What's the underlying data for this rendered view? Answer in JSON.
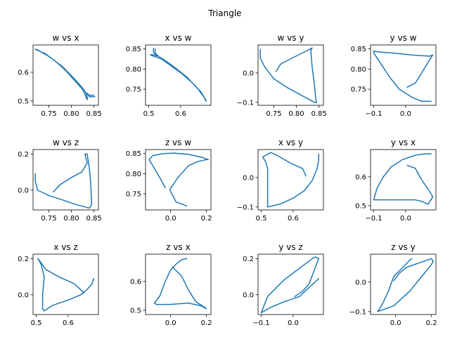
{
  "figure": {
    "title": "Triangle"
  },
  "colors": {
    "series": "#1f77b4"
  },
  "chart_data": [
    {
      "type": "line",
      "title": "w vs x",
      "xlim": [
        0.715,
        0.86
      ],
      "ylim": [
        0.485,
        0.695
      ],
      "xticks": [
        {
          "v": 0.75,
          "label": "0.75"
        },
        {
          "v": 0.8,
          "label": "0.80"
        },
        {
          "v": 0.85,
          "label": "0.85"
        }
      ],
      "yticks": [
        {
          "v": 0.5,
          "label": "0.5"
        },
        {
          "v": 0.6,
          "label": "0.6"
        }
      ],
      "x": [
        0.85,
        0.84,
        0.832,
        0.836,
        0.835,
        0.825,
        0.808,
        0.788,
        0.765,
        0.742,
        0.72,
        0.725,
        0.75,
        0.78,
        0.805,
        0.822,
        0.832,
        0.84,
        0.852
      ],
      "y": [
        0.52,
        0.52,
        0.53,
        0.508,
        0.505,
        0.54,
        0.57,
        0.605,
        0.638,
        0.665,
        0.68,
        0.678,
        0.655,
        0.62,
        0.58,
        0.55,
        0.53,
        0.515,
        0.515
      ]
    },
    {
      "type": "line",
      "title": "x vs w",
      "xlim": [
        0.49,
        0.695
      ],
      "ylim": [
        0.71,
        0.86
      ],
      "xticks": [
        {
          "v": 0.5,
          "label": "0.5"
        },
        {
          "v": 0.6,
          "label": "0.6"
        }
      ],
      "yticks": [
        {
          "v": 0.75,
          "label": "0.75"
        },
        {
          "v": 0.8,
          "label": "0.80"
        },
        {
          "v": 0.85,
          "label": "0.85"
        }
      ],
      "x": [
        0.52,
        0.52,
        0.53,
        0.508,
        0.505,
        0.54,
        0.57,
        0.605,
        0.638,
        0.665,
        0.68,
        0.678,
        0.655,
        0.62,
        0.58,
        0.55,
        0.53,
        0.515,
        0.515
      ],
      "y": [
        0.85,
        0.84,
        0.832,
        0.836,
        0.835,
        0.825,
        0.808,
        0.788,
        0.765,
        0.742,
        0.72,
        0.725,
        0.75,
        0.78,
        0.805,
        0.822,
        0.832,
        0.84,
        0.852
      ]
    },
    {
      "type": "line",
      "title": "w vs y",
      "xlim": [
        0.715,
        0.86
      ],
      "ylim": [
        -0.11,
        0.095
      ],
      "xticks": [
        {
          "v": 0.75,
          "label": "0.75"
        },
        {
          "v": 0.8,
          "label": "0.80"
        },
        {
          "v": 0.85,
          "label": "0.85"
        }
      ],
      "yticks": [
        {
          "v": -0.1,
          "label": "−0.1"
        },
        {
          "v": 0.0,
          "label": "0.0"
        }
      ],
      "x": [
        0.755,
        0.765,
        0.79,
        0.823,
        0.835,
        0.832,
        0.835,
        0.84,
        0.843,
        0.845,
        0.84,
        0.81,
        0.78,
        0.75,
        0.73,
        0.72,
        0.72
      ],
      "y": [
        0.005,
        0.03,
        0.05,
        0.075,
        0.085,
        0.075,
        0.02,
        -0.04,
        -0.09,
        -0.1,
        -0.1,
        -0.075,
        -0.05,
        -0.02,
        0.02,
        0.05,
        0.08
      ]
    },
    {
      "type": "line",
      "title": "y vs w",
      "xlim": [
        -0.11,
        0.095
      ],
      "ylim": [
        0.71,
        0.86
      ],
      "xticks": [
        {
          "v": -0.1,
          "label": "−0.1"
        },
        {
          "v": 0.0,
          "label": "0.0"
        }
      ],
      "yticks": [
        {
          "v": 0.75,
          "label": "0.75"
        },
        {
          "v": 0.8,
          "label": "0.80"
        },
        {
          "v": 0.85,
          "label": "0.85"
        }
      ],
      "x": [
        0.005,
        0.03,
        0.05,
        0.075,
        0.085,
        0.075,
        0.02,
        -0.04,
        -0.09,
        -0.1,
        -0.1,
        -0.075,
        -0.05,
        -0.02,
        0.02,
        0.05,
        0.08
      ],
      "y": [
        0.755,
        0.765,
        0.79,
        0.823,
        0.835,
        0.832,
        0.835,
        0.84,
        0.843,
        0.845,
        0.84,
        0.81,
        0.78,
        0.75,
        0.73,
        0.72,
        0.72
      ]
    },
    {
      "type": "line",
      "title": "w vs z",
      "xlim": [
        0.715,
        0.86
      ],
      "ylim": [
        -0.11,
        0.225
      ],
      "xticks": [
        {
          "v": 0.75,
          "label": "0.75"
        },
        {
          "v": 0.8,
          "label": "0.80"
        },
        {
          "v": 0.85,
          "label": "0.85"
        }
      ],
      "yticks": [
        {
          "v": 0.0,
          "label": "0.0"
        },
        {
          "v": 0.2,
          "label": "0.2"
        }
      ],
      "x": [
        0.76,
        0.775,
        0.8,
        0.823,
        0.835,
        0.83,
        0.835,
        0.84,
        0.843,
        0.845,
        0.84,
        0.81,
        0.775,
        0.75,
        0.725,
        0.72,
        0.72
      ],
      "y": [
        -0.01,
        0.03,
        0.07,
        0.1,
        0.15,
        0.2,
        0.2,
        0.12,
        0.03,
        -0.08,
        -0.1,
        -0.08,
        -0.05,
        -0.03,
        0.0,
        0.05,
        0.09
      ]
    },
    {
      "type": "line",
      "title": "z vs w",
      "xlim": [
        -0.14,
        0.225
      ],
      "ylim": [
        0.71,
        0.86
      ],
      "xticks": [
        {
          "v": 0.0,
          "label": "0.0"
        },
        {
          "v": 0.2,
          "label": "0.2"
        }
      ],
      "yticks": [
        {
          "v": 0.75,
          "label": "0.75"
        },
        {
          "v": 0.8,
          "label": "0.80"
        },
        {
          "v": 0.85,
          "label": "0.85"
        }
      ],
      "x": [
        0.09,
        0.03,
        -0.005,
        0.04,
        0.1,
        0.15,
        0.2,
        0.21,
        0.18,
        0.1,
        0.02,
        -0.04,
        -0.1,
        -0.12,
        -0.1,
        -0.06,
        -0.03
      ],
      "y": [
        0.72,
        0.73,
        0.76,
        0.79,
        0.82,
        0.83,
        0.835,
        0.835,
        0.84,
        0.848,
        0.851,
        0.85,
        0.845,
        0.835,
        0.82,
        0.79,
        0.765
      ]
    },
    {
      "type": "line",
      "title": "x vs y",
      "xlim": [
        0.49,
        0.695
      ],
      "ylim": [
        -0.11,
        0.095
      ],
      "xticks": [
        {
          "v": 0.5,
          "label": "0.5"
        },
        {
          "v": 0.6,
          "label": "0.6"
        }
      ],
      "yticks": [
        {
          "v": -0.1,
          "label": "−0.1"
        },
        {
          "v": 0.0,
          "label": "0.0"
        }
      ],
      "x": [
        0.64,
        0.63,
        0.59,
        0.55,
        0.53,
        0.505,
        0.515,
        0.52,
        0.52,
        0.52,
        0.56,
        0.6,
        0.635,
        0.66,
        0.675,
        0.68,
        0.68
      ],
      "y": [
        0.005,
        0.03,
        0.05,
        0.075,
        0.085,
        0.07,
        0.05,
        0.03,
        -0.04,
        -0.1,
        -0.09,
        -0.07,
        -0.045,
        -0.01,
        0.03,
        0.06,
        0.08
      ]
    },
    {
      "type": "line",
      "title": "y vs x",
      "xlim": [
        -0.11,
        0.095
      ],
      "ylim": [
        0.485,
        0.695
      ],
      "xticks": [
        {
          "v": -0.1,
          "label": "−0.1"
        },
        {
          "v": 0.0,
          "label": "0.0"
        }
      ],
      "yticks": [
        {
          "v": 0.5,
          "label": "0.5"
        },
        {
          "v": 0.6,
          "label": "0.6"
        }
      ],
      "x": [
        0.005,
        0.03,
        0.05,
        0.075,
        0.085,
        0.07,
        0.05,
        0.03,
        -0.04,
        -0.1,
        -0.09,
        -0.07,
        -0.045,
        -0.01,
        0.03,
        0.06,
        0.08
      ],
      "y": [
        0.64,
        0.63,
        0.59,
        0.55,
        0.53,
        0.505,
        0.515,
        0.52,
        0.52,
        0.52,
        0.56,
        0.6,
        0.635,
        0.66,
        0.675,
        0.68,
        0.68
      ]
    },
    {
      "type": "line",
      "title": "x vs z",
      "xlim": [
        0.49,
        0.695
      ],
      "ylim": [
        -0.11,
        0.225
      ],
      "xticks": [
        {
          "v": 0.5,
          "label": "0.5"
        },
        {
          "v": 0.6,
          "label": "0.6"
        }
      ],
      "yticks": [
        {
          "v": 0.0,
          "label": "0.0"
        },
        {
          "v": 0.2,
          "label": "0.2"
        }
      ],
      "x": [
        0.68,
        0.675,
        0.66,
        0.64,
        0.6,
        0.55,
        0.525,
        0.52,
        0.52,
        0.525,
        0.515,
        0.505,
        0.51,
        0.53,
        0.57,
        0.62,
        0.65
      ],
      "y": [
        0.09,
        0.06,
        0.03,
        0.0,
        -0.03,
        -0.06,
        -0.09,
        -0.08,
        0.0,
        0.1,
        0.17,
        0.2,
        0.19,
        0.14,
        0.1,
        0.06,
        0.01
      ]
    },
    {
      "type": "line",
      "title": "z vs x",
      "xlim": [
        -0.14,
        0.225
      ],
      "ylim": [
        0.485,
        0.695
      ],
      "xticks": [
        {
          "v": 0.0,
          "label": "0.0"
        },
        {
          "v": 0.2,
          "label": "0.2"
        }
      ],
      "yticks": [
        {
          "v": 0.5,
          "label": "0.5"
        },
        {
          "v": 0.6,
          "label": "0.6"
        }
      ],
      "x": [
        0.09,
        0.06,
        0.03,
        0.0,
        -0.03,
        -0.06,
        -0.09,
        -0.08,
        0.0,
        0.1,
        0.17,
        0.2,
        0.19,
        0.14,
        0.1,
        0.06,
        0.01
      ],
      "y": [
        0.68,
        0.675,
        0.66,
        0.64,
        0.6,
        0.55,
        0.525,
        0.52,
        0.52,
        0.525,
        0.515,
        0.505,
        0.51,
        0.53,
        0.57,
        0.62,
        0.65
      ]
    },
    {
      "type": "line",
      "title": "y vs z",
      "xlim": [
        -0.11,
        0.095
      ],
      "ylim": [
        -0.11,
        0.225
      ],
      "xticks": [
        {
          "v": -0.1,
          "label": "−0.1"
        },
        {
          "v": 0.0,
          "label": "0.0"
        }
      ],
      "yticks": [
        {
          "v": 0.0,
          "label": "0.0"
        },
        {
          "v": 0.2,
          "label": "0.2"
        }
      ],
      "x": [
        0.005,
        0.03,
        0.05,
        0.065,
        0.08,
        0.07,
        0.06,
        0.03,
        -0.03,
        -0.08,
        -0.1,
        -0.07,
        -0.03,
        0.02,
        0.05,
        0.075,
        0.08
      ],
      "y": [
        -0.01,
        0.02,
        0.06,
        0.13,
        0.2,
        0.21,
        0.2,
        0.16,
        0.08,
        -0.01,
        -0.1,
        -0.07,
        -0.04,
        -0.01,
        0.04,
        0.08,
        0.09
      ]
    },
    {
      "type": "line",
      "title": "z vs y",
      "xlim": [
        -0.14,
        0.225
      ],
      "ylim": [
        -0.11,
        0.095
      ],
      "xticks": [
        {
          "v": 0.0,
          "label": "0.0"
        },
        {
          "v": 0.2,
          "label": "0.2"
        }
      ],
      "yticks": [
        {
          "v": -0.1,
          "label": "−0.1"
        },
        {
          "v": 0.0,
          "label": "0.0"
        }
      ],
      "x": [
        -0.01,
        0.02,
        0.06,
        0.13,
        0.2,
        0.21,
        0.2,
        0.16,
        0.08,
        -0.01,
        -0.1,
        -0.07,
        -0.04,
        -0.01,
        0.04,
        0.08,
        0.09
      ],
      "y": [
        0.005,
        0.03,
        0.05,
        0.065,
        0.08,
        0.07,
        0.06,
        0.03,
        -0.03,
        -0.08,
        -0.1,
        -0.07,
        -0.03,
        0.02,
        0.05,
        0.075,
        0.08
      ]
    }
  ]
}
